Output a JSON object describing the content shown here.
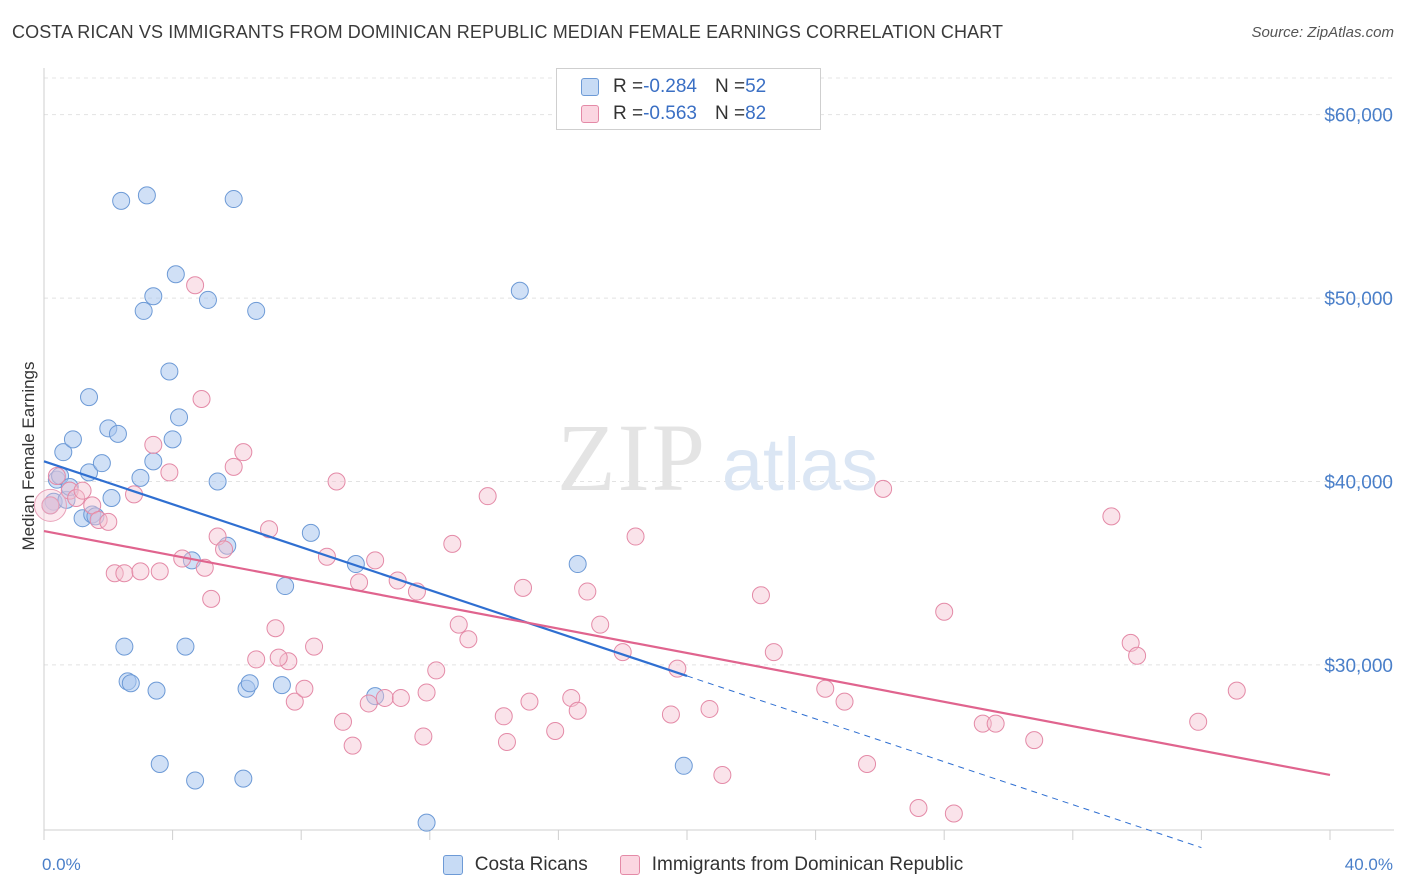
{
  "title": "COSTA RICAN VS IMMIGRANTS FROM DOMINICAN REPUBLIC MEDIAN FEMALE EARNINGS CORRELATION CHART",
  "source": "Source: ZipAtlas.com",
  "watermark": {
    "zip": "ZIP",
    "atlas": "atlas"
  },
  "legend": [
    {
      "r_label": "R = ",
      "r_value": "-0.284",
      "n_label": "N = ",
      "n_value": "52",
      "color": "#a9c6ee",
      "border": "#6d9ad6"
    },
    {
      "r_label": "R = ",
      "r_value": "-0.563",
      "n_label": "N = ",
      "n_value": "82",
      "color": "#f5c0d0",
      "border": "#e48aa7"
    }
  ],
  "bottom_legend": [
    "Costa Ricans",
    "Immigrants from Dominican Republic"
  ],
  "chart_data": {
    "type": "scatter",
    "title": "COSTA RICAN VS IMMIGRANTS FROM DOMINICAN REPUBLIC MEDIAN FEMALE EARNINGS CORRELATION CHART",
    "xlabel": "",
    "ylabel": "Median Female Earnings",
    "xlim": [
      0,
      40
    ],
    "ylim": [
      21000,
      62000
    ],
    "x_tick_labels": [
      "0.0%",
      "40.0%"
    ],
    "y_ticks": [
      30000,
      40000,
      50000,
      60000
    ],
    "y_tick_labels": [
      "$30,000",
      "$40,000",
      "$50,000",
      "$60,000"
    ],
    "grid": true,
    "legend_position": "top-center",
    "series": [
      {
        "name": "Costa Ricans",
        "color": "#7aa5e0",
        "points": [
          [
            0.3,
            38900
          ],
          [
            0.4,
            40100
          ],
          [
            0.5,
            40300
          ],
          [
            0.6,
            41600
          ],
          [
            0.7,
            39000
          ],
          [
            0.8,
            39700
          ],
          [
            0.9,
            42300
          ],
          [
            1.2,
            38000
          ],
          [
            1.4,
            40500
          ],
          [
            1.4,
            44600
          ],
          [
            1.5,
            38200
          ],
          [
            1.6,
            38100
          ],
          [
            1.8,
            41000
          ],
          [
            2.0,
            42900
          ],
          [
            2.1,
            39100
          ],
          [
            2.3,
            42600
          ],
          [
            2.4,
            55300
          ],
          [
            2.5,
            31000
          ],
          [
            2.6,
            29100
          ],
          [
            2.7,
            29000
          ],
          [
            3.0,
            40200
          ],
          [
            3.1,
            49300
          ],
          [
            3.2,
            55600
          ],
          [
            3.4,
            41100
          ],
          [
            3.4,
            50100
          ],
          [
            3.5,
            28600
          ],
          [
            3.6,
            24600
          ],
          [
            3.9,
            46000
          ],
          [
            4.0,
            42300
          ],
          [
            4.2,
            43500
          ],
          [
            4.1,
            51300
          ],
          [
            4.4,
            31000
          ],
          [
            4.6,
            35700
          ],
          [
            4.7,
            23700
          ],
          [
            5.1,
            49900
          ],
          [
            5.4,
            40000
          ],
          [
            5.7,
            36500
          ],
          [
            5.9,
            55400
          ],
          [
            6.2,
            23800
          ],
          [
            6.3,
            28700
          ],
          [
            6.4,
            29000
          ],
          [
            6.6,
            49300
          ],
          [
            7.4,
            28900
          ],
          [
            7.5,
            34300
          ],
          [
            8.3,
            37200
          ],
          [
            9.7,
            35500
          ],
          [
            10.3,
            28300
          ],
          [
            11.9,
            21400
          ],
          [
            14.8,
            50400
          ],
          [
            16.6,
            35500
          ],
          [
            19.9,
            24500
          ],
          [
            0.2,
            38700
          ]
        ]
      },
      {
        "name": "Immigrants from Dominican Republic",
        "color": "#f0a5bd",
        "points": [
          [
            0.2,
            38700
          ],
          [
            0.4,
            40300
          ],
          [
            0.8,
            39500
          ],
          [
            1.0,
            39100
          ],
          [
            1.2,
            39500
          ],
          [
            1.5,
            38700
          ],
          [
            1.7,
            37900
          ],
          [
            2.0,
            37800
          ],
          [
            2.2,
            35000
          ],
          [
            2.5,
            35000
          ],
          [
            2.8,
            39300
          ],
          [
            3.0,
            35100
          ],
          [
            3.4,
            42000
          ],
          [
            3.6,
            35100
          ],
          [
            3.9,
            40500
          ],
          [
            4.3,
            35800
          ],
          [
            4.7,
            50700
          ],
          [
            4.9,
            44500
          ],
          [
            5.2,
            33600
          ],
          [
            5.4,
            37000
          ],
          [
            5.6,
            36300
          ],
          [
            5.9,
            40800
          ],
          [
            6.2,
            41600
          ],
          [
            6.6,
            30300
          ],
          [
            7.0,
            37400
          ],
          [
            7.2,
            32000
          ],
          [
            7.6,
            30200
          ],
          [
            7.8,
            28000
          ],
          [
            8.1,
            28700
          ],
          [
            8.4,
            31000
          ],
          [
            8.8,
            35900
          ],
          [
            9.1,
            40000
          ],
          [
            9.3,
            26900
          ],
          [
            9.6,
            25600
          ],
          [
            9.8,
            34500
          ],
          [
            10.1,
            27900
          ],
          [
            10.3,
            35700
          ],
          [
            10.6,
            28200
          ],
          [
            11.0,
            34600
          ],
          [
            11.1,
            28200
          ],
          [
            11.6,
            34000
          ],
          [
            11.8,
            26100
          ],
          [
            11.9,
            28500
          ],
          [
            12.2,
            29700
          ],
          [
            12.7,
            36600
          ],
          [
            12.9,
            32200
          ],
          [
            13.2,
            31400
          ],
          [
            13.8,
            39200
          ],
          [
            14.3,
            27200
          ],
          [
            14.4,
            25800
          ],
          [
            14.9,
            34200
          ],
          [
            15.1,
            28000
          ],
          [
            15.9,
            26400
          ],
          [
            16.4,
            28200
          ],
          [
            16.6,
            27500
          ],
          [
            16.9,
            34000
          ],
          [
            17.3,
            32200
          ],
          [
            18.0,
            30700
          ],
          [
            18.4,
            37000
          ],
          [
            19.5,
            27300
          ],
          [
            19.7,
            29800
          ],
          [
            20.7,
            27600
          ],
          [
            21.1,
            24000
          ],
          [
            22.3,
            33800
          ],
          [
            22.7,
            30700
          ],
          [
            24.3,
            28700
          ],
          [
            24.9,
            28000
          ],
          [
            25.6,
            24600
          ],
          [
            26.1,
            39600
          ],
          [
            27.2,
            22200
          ],
          [
            28.0,
            32900
          ],
          [
            28.3,
            21900
          ],
          [
            29.2,
            26800
          ],
          [
            29.6,
            26800
          ],
          [
            30.8,
            25900
          ],
          [
            33.2,
            38100
          ],
          [
            33.8,
            31200
          ],
          [
            34.0,
            30500
          ],
          [
            35.9,
            26900
          ],
          [
            37.1,
            28600
          ],
          [
            7.3,
            30400
          ],
          [
            5.0,
            35300
          ]
        ]
      }
    ],
    "trendlines": [
      {
        "series": "Costa Ricans",
        "x": [
          0,
          20.0
        ],
        "y": [
          41100,
          29400
        ],
        "dashed_extension_to_x": 36
      },
      {
        "series": "Immigrants from Dominican Republic",
        "x": [
          0,
          40
        ],
        "y": [
          37300,
          24000
        ]
      }
    ]
  }
}
